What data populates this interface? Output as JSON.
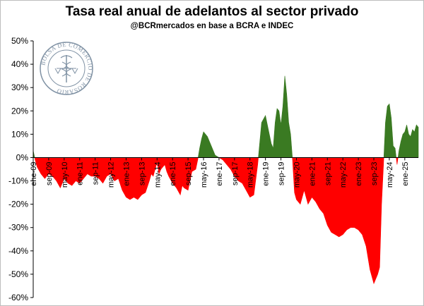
{
  "chart_data": {
    "type": "area",
    "title": "Tasa real anual de adelantos al sector privado",
    "subtitle": "@BCRmercados en base a BCRA e INDEC",
    "logo_text": "BOLSA DE COMERCIO DE ROSARIO",
    "ylim": [
      -60,
      50
    ],
    "y_ticks": [
      -60,
      -50,
      -40,
      -30,
      -20,
      -10,
      0,
      10,
      20,
      30,
      40,
      50
    ],
    "y_tick_suffix": "%",
    "x_range": [
      "2009-01",
      "2025-08"
    ],
    "x_tick_labels": [
      {
        "label": "ene-09",
        "date": "2009-01"
      },
      {
        "label": "sep-09",
        "date": "2009-09"
      },
      {
        "label": "may-10",
        "date": "2010-05"
      },
      {
        "label": "ene-11",
        "date": "2011-01"
      },
      {
        "label": "sep-11",
        "date": "2011-09"
      },
      {
        "label": "may-12",
        "date": "2012-05"
      },
      {
        "label": "ene-13",
        "date": "2013-01"
      },
      {
        "label": "sep-13",
        "date": "2013-09"
      },
      {
        "label": "may-14",
        "date": "2014-05"
      },
      {
        "label": "ene-15",
        "date": "2015-01"
      },
      {
        "label": "sep-15",
        "date": "2015-09"
      },
      {
        "label": "may-16",
        "date": "2016-05"
      },
      {
        "label": "ene-17",
        "date": "2017-01"
      },
      {
        "label": "sep-17",
        "date": "2017-09"
      },
      {
        "label": "may-18",
        "date": "2018-05"
      },
      {
        "label": "ene-19",
        "date": "2019-01"
      },
      {
        "label": "sep-19",
        "date": "2019-09"
      },
      {
        "label": "may-20",
        "date": "2020-05"
      },
      {
        "label": "ene-21",
        "date": "2021-01"
      },
      {
        "label": "sep-21",
        "date": "2021-09"
      },
      {
        "label": "may-22",
        "date": "2022-05"
      },
      {
        "label": "ene-23",
        "date": "2023-01"
      },
      {
        "label": "sep-23",
        "date": "2023-09"
      },
      {
        "label": "may-24",
        "date": "2024-05"
      },
      {
        "label": "ene-25",
        "date": "2025-01"
      }
    ],
    "colors": {
      "positive": "#3a7a22",
      "negative": "#ff0000",
      "axis": "#000000"
    },
    "grid": false,
    "series": [
      {
        "x": [
          "2009-01",
          "2009-02",
          "2009-03",
          "2009-05",
          "2009-07",
          "2009-09",
          "2009-11",
          "2010-01",
          "2010-03",
          "2010-05",
          "2010-07",
          "2010-09",
          "2010-11",
          "2011-01",
          "2011-03",
          "2011-05",
          "2011-07",
          "2011-09",
          "2011-11",
          "2012-01",
          "2012-03",
          "2012-05",
          "2012-07",
          "2012-09",
          "2012-11",
          "2013-01",
          "2013-03",
          "2013-05",
          "2013-07",
          "2013-09",
          "2013-11",
          "2014-01",
          "2014-02",
          "2014-03",
          "2014-04",
          "2014-05",
          "2014-06",
          "2014-07",
          "2014-08",
          "2014-09",
          "2014-10",
          "2014-11",
          "2015-01",
          "2015-03",
          "2015-05",
          "2015-06",
          "2015-07",
          "2015-09",
          "2015-11",
          "2016-01",
          "2016-02",
          "2016-03",
          "2016-04",
          "2016-05",
          "2016-07",
          "2016-09",
          "2016-11",
          "2017-01",
          "2017-03",
          "2017-05",
          "2017-07",
          "2017-09",
          "2017-11",
          "2018-01",
          "2018-03",
          "2018-05",
          "2018-07",
          "2018-09",
          "2018-11",
          "2019-01",
          "2019-03",
          "2019-04",
          "2019-05",
          "2019-06",
          "2019-07",
          "2019-08",
          "2019-09",
          "2019-10",
          "2019-11",
          "2019-12",
          "2020-01",
          "2020-02",
          "2020-03",
          "2020-04",
          "2020-05",
          "2020-07",
          "2020-09",
          "2020-11",
          "2021-01",
          "2021-03",
          "2021-05",
          "2021-07",
          "2021-09",
          "2021-11",
          "2022-01",
          "2022-03",
          "2022-05",
          "2022-07",
          "2022-09",
          "2022-11",
          "2023-01",
          "2023-03",
          "2023-05",
          "2023-07",
          "2023-09",
          "2023-11",
          "2023-12",
          "2024-01",
          "2024-02",
          "2024-03",
          "2024-04",
          "2024-05",
          "2024-06",
          "2024-07",
          "2024-08",
          "2024-09",
          "2024-10",
          "2024-11",
          "2024-12",
          "2025-01",
          "2025-02",
          "2025-03",
          "2025-04",
          "2025-05",
          "2025-06",
          "2025-07",
          "2025-08"
        ],
        "y": [
          3,
          -1,
          -4,
          -7,
          -9,
          -7,
          -8,
          -10,
          -13,
          -9,
          -11,
          -12,
          -10,
          -11,
          -9,
          -7,
          -8,
          -8,
          -9,
          -11,
          -8,
          -7,
          -10,
          -9,
          -14,
          -17,
          -18,
          -17,
          -18,
          -16,
          -15,
          -10,
          -7,
          -8,
          -5,
          -2,
          -7,
          -5,
          -4,
          -3,
          -6,
          -8,
          -11,
          -13,
          -16,
          -12,
          -13,
          -14,
          -6,
          -5,
          -1,
          4,
          8,
          11,
          9,
          5,
          1,
          0,
          -1,
          -3,
          -5,
          -8,
          -10,
          -11,
          -14,
          -17,
          -16,
          -3,
          15,
          18,
          10,
          6,
          4,
          15,
          21,
          20,
          14,
          22,
          35,
          27,
          15,
          10,
          -1,
          -15,
          -18,
          -20,
          -14,
          -20,
          -17,
          -19,
          -22,
          -24,
          -29,
          -32,
          -33,
          -34,
          -33,
          -31,
          -30,
          -30,
          -31,
          -33,
          -38,
          -48,
          -54,
          -50,
          -47,
          -20,
          -3,
          15,
          22,
          23,
          17,
          5,
          4,
          -3,
          3,
          7,
          10,
          11,
          14,
          10,
          9,
          12,
          11,
          14,
          13
        ]
      }
    ]
  }
}
